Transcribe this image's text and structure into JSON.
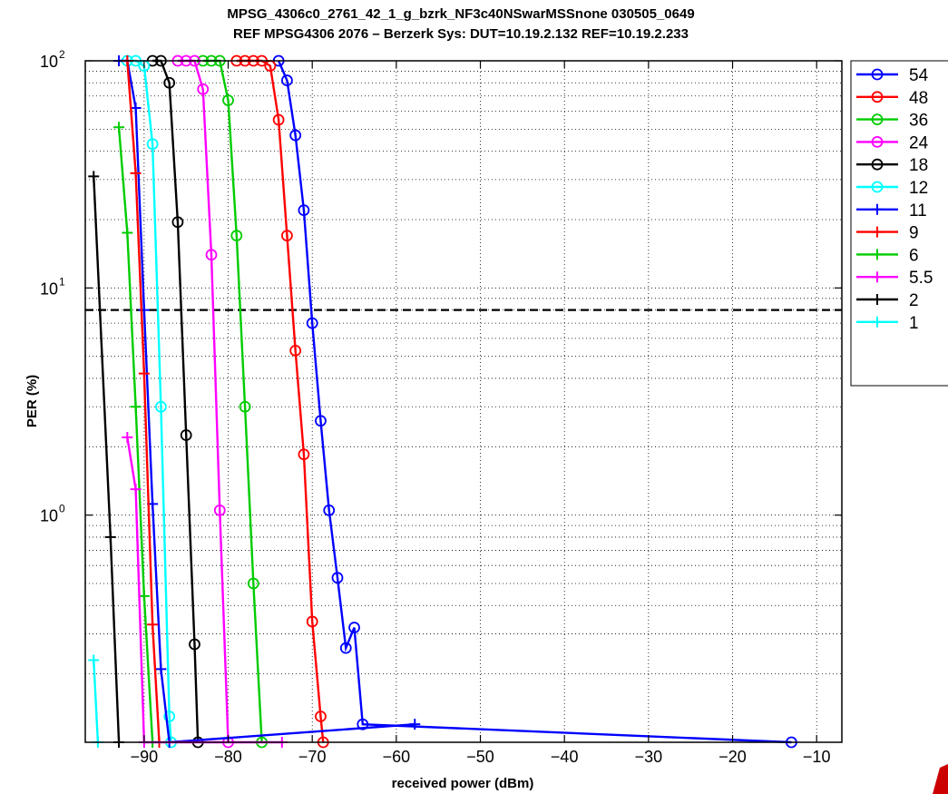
{
  "chart_data": {
    "type": "line",
    "title_lines": [
      "MPSG_4306c0_2761_42_1_g_bzrk_NF3c40NSwarMSSnone 030505_0649",
      "REF MPSG4306 2076 – Berzerk Sys: DUT=10.19.2.132 REF=10.19.2.233"
    ],
    "xlabel": "received power (dBm)",
    "ylabel": "PER (%)",
    "xlim": [
      -97,
      -7
    ],
    "ylim": [
      0.1,
      100
    ],
    "yscale": "log",
    "x_ticks": [
      -90,
      -80,
      -70,
      -60,
      -50,
      -40,
      -30,
      -20,
      -10
    ],
    "x_tick_labels": [
      "−90",
      "−80",
      "−70",
      "−60",
      "−50",
      "−40",
      "−30",
      "−20",
      "−10"
    ],
    "y_ticks": [
      {
        "value": 1,
        "base": "10",
        "exp": "0"
      },
      {
        "value": 10,
        "base": "10",
        "exp": "1"
      },
      {
        "value": 100,
        "base": "10",
        "exp": "2"
      }
    ],
    "grid": true,
    "reference_line": {
      "y": 8,
      "style": "dashed",
      "color": "#000000"
    },
    "legend_position": "outside-right",
    "series": [
      {
        "name": "54",
        "color": "#0000ff",
        "marker": "circle",
        "points": [
          [
            -74,
            100
          ],
          [
            -73,
            82
          ],
          [
            -72,
            47
          ],
          [
            -71,
            22
          ],
          [
            -70,
            7
          ],
          [
            -69,
            2.6
          ],
          [
            -68,
            1.05
          ],
          [
            -67,
            0.53
          ],
          [
            -66,
            0.26
          ],
          [
            -65,
            0.32
          ],
          [
            -64,
            0.12
          ],
          [
            -13,
            0.1
          ]
        ]
      },
      {
        "name": "48",
        "color": "#ff0000",
        "marker": "circle",
        "points": [
          [
            -79,
            100
          ],
          [
            -78,
            100
          ],
          [
            -77,
            100
          ],
          [
            -76,
            100
          ],
          [
            -75,
            95
          ],
          [
            -74,
            55
          ],
          [
            -73,
            17
          ],
          [
            -72,
            5.3
          ],
          [
            -71,
            1.85
          ],
          [
            -70,
            0.34
          ],
          [
            -69,
            0.13
          ],
          [
            -68.7,
            0.1
          ]
        ]
      },
      {
        "name": "36",
        "color": "#00cc00",
        "marker": "circle",
        "points": [
          [
            -83,
            100
          ],
          [
            -82,
            100
          ],
          [
            -81,
            100
          ],
          [
            -80,
            67
          ],
          [
            -79,
            17
          ],
          [
            -78,
            3
          ],
          [
            -77,
            0.5
          ],
          [
            -76,
            0.1
          ]
        ]
      },
      {
        "name": "24",
        "color": "#ff00ff",
        "marker": "circle",
        "points": [
          [
            -86,
            100
          ],
          [
            -85,
            100
          ],
          [
            -84,
            100
          ],
          [
            -83,
            75
          ],
          [
            -82,
            14
          ],
          [
            -81,
            1.05
          ],
          [
            -80,
            0.1
          ]
        ]
      },
      {
        "name": "18",
        "color": "#000000",
        "marker": "circle",
        "points": [
          [
            -89,
            100
          ],
          [
            -88,
            100
          ],
          [
            -87,
            80
          ],
          [
            -86,
            19.5
          ],
          [
            -85,
            2.25
          ],
          [
            -84,
            0.27
          ],
          [
            -83.6,
            0.1
          ]
        ]
      },
      {
        "name": "12",
        "color": "#00ffff",
        "marker": "circle",
        "points": [
          [
            -92,
            100
          ],
          [
            -91,
            100
          ],
          [
            -90,
            95
          ],
          [
            -89,
            43
          ],
          [
            -88,
            3
          ],
          [
            -87,
            0.13
          ],
          [
            -86.8,
            0.1
          ]
        ]
      },
      {
        "name": "11",
        "color": "#0000ff",
        "marker": "plus",
        "points": [
          [
            -93,
            100
          ],
          [
            -92,
            100
          ],
          [
            -91,
            62
          ],
          [
            -90,
            8
          ],
          [
            -89,
            1.12
          ],
          [
            -88,
            0.21
          ],
          [
            -87,
            0.1
          ],
          [
            -57.8,
            0.12
          ]
        ]
      },
      {
        "name": "9",
        "color": "#ff0000",
        "marker": "plus",
        "points": [
          [
            -92,
            100
          ],
          [
            -91,
            32
          ],
          [
            -90,
            4.2
          ],
          [
            -89,
            0.33
          ],
          [
            -88.2,
            0.1
          ]
        ]
      },
      {
        "name": "6",
        "color": "#00cc00",
        "marker": "plus",
        "points": [
          [
            -93,
            51
          ],
          [
            -92,
            17.5
          ],
          [
            -91,
            3
          ],
          [
            -90,
            0.44
          ],
          [
            -89,
            0.1
          ]
        ]
      },
      {
        "name": "5.5",
        "color": "#ff00ff",
        "marker": "plus",
        "points": [
          [
            -92,
            2.2
          ],
          [
            -91,
            1.3
          ],
          [
            -90,
            0.1
          ],
          [
            -73.6,
            0.1
          ]
        ]
      },
      {
        "name": "2",
        "color": "#000000",
        "marker": "plus",
        "points": [
          [
            -96,
            31
          ],
          [
            -94,
            0.8
          ],
          [
            -93,
            0.1
          ]
        ]
      },
      {
        "name": "1",
        "color": "#00ffff",
        "marker": "plus",
        "points": [
          [
            -96,
            0.23
          ],
          [
            -95.5,
            0.1
          ]
        ]
      }
    ]
  }
}
